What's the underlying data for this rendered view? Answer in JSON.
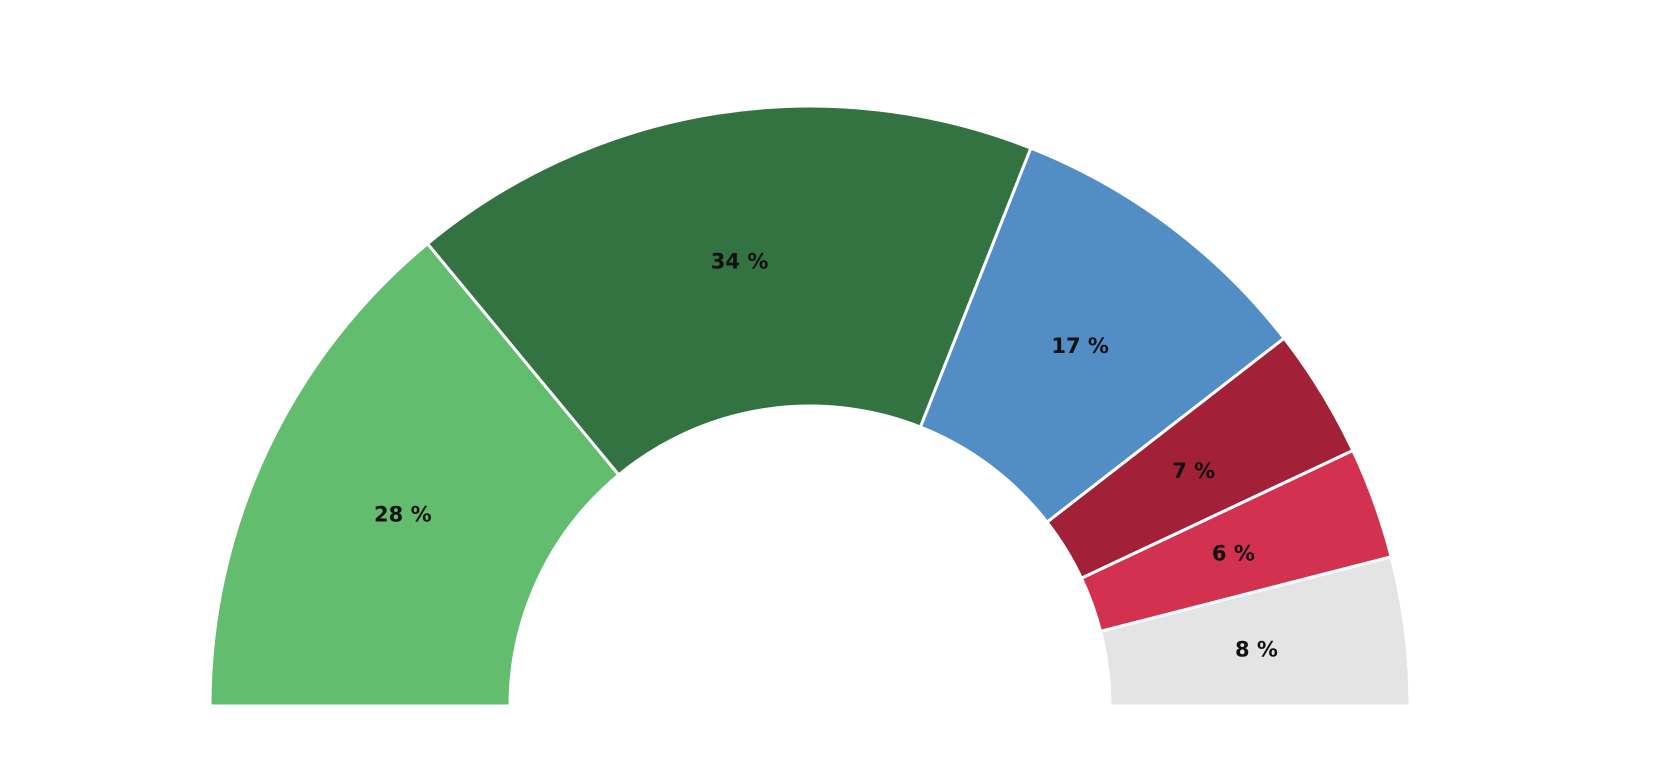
{
  "chart_data": {
    "type": "pie",
    "variant": "semicircle-donut",
    "title": "",
    "series": [
      {
        "label": "28 %",
        "value": 28,
        "color": "#63bd6e"
      },
      {
        "label": "34 %",
        "value": 34,
        "color": "#337241"
      },
      {
        "label": "17 %",
        "value": 17,
        "color": "#528dc6"
      },
      {
        "label": "7 %",
        "value": 7,
        "color": "#a32138"
      },
      {
        "label": "6 %",
        "value": 6,
        "color": "#d33150"
      },
      {
        "label": "8 %",
        "value": 8,
        "color": "#e4e4e4"
      }
    ],
    "legend": "none"
  }
}
